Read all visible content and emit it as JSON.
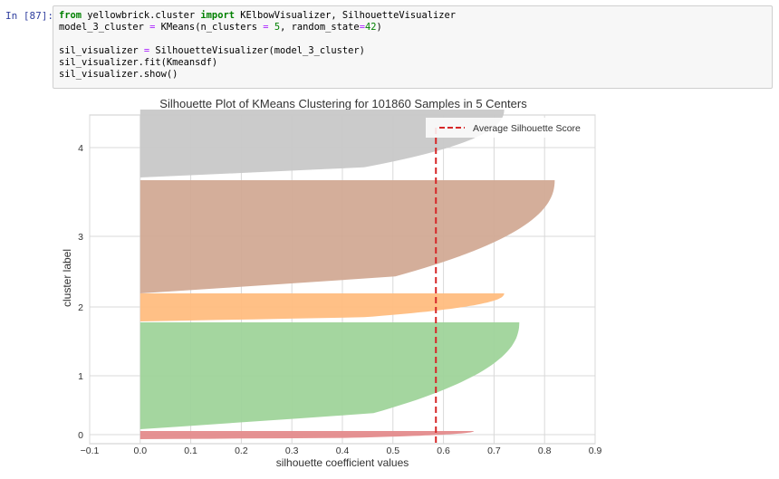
{
  "notebook": {
    "prompt": "In [87]:",
    "code_lines": [
      "from yellowbrick.cluster import KElbowVisualizer, SilhouetteVisualizer",
      "model_3_cluster = KMeans(n_clusters = 5, random_state=42)",
      "",
      "sil_visualizer = SilhouetteVisualizer(model_3_cluster)",
      "sil_visualizer.fit(Kmeansdf)",
      "sil_visualizer.show()"
    ]
  },
  "chart_data": {
    "type": "area",
    "title": "Silhouette Plot of KMeans Clustering for 101860 Samples in 5 Centers",
    "xlabel": "silhouette coefficient values",
    "ylabel": "cluster label",
    "xlim": [
      -0.1,
      0.9
    ],
    "x_ticks": [
      "−0.1",
      "0.0",
      "0.1",
      "0.2",
      "0.3",
      "0.4",
      "0.5",
      "0.6",
      "0.7",
      "0.8",
      "0.9"
    ],
    "y_ticks": [
      "0",
      "1",
      "2",
      "3",
      "4"
    ],
    "grid": true,
    "legend_position": "top-right",
    "average_silhouette_score": 0.585,
    "average_line_label": "Average Silhouette Score",
    "average_line_color": "#d62728",
    "clusters": [
      {
        "label": "0",
        "color": "#e48b8c",
        "max_value": 0.66,
        "min_value": 0.0
      },
      {
        "label": "1",
        "color": "#9fd49a",
        "max_value": 0.75,
        "min_value": 0.0
      },
      {
        "label": "2",
        "color": "#ffbd7f",
        "max_value": 0.72,
        "min_value": 0.0
      },
      {
        "label": "3",
        "color": "#d2aa95",
        "max_value": 0.82,
        "min_value": 0.0
      },
      {
        "label": "4",
        "color": "#c8c8c8",
        "max_value": 0.72,
        "min_value": 0.0
      }
    ]
  }
}
